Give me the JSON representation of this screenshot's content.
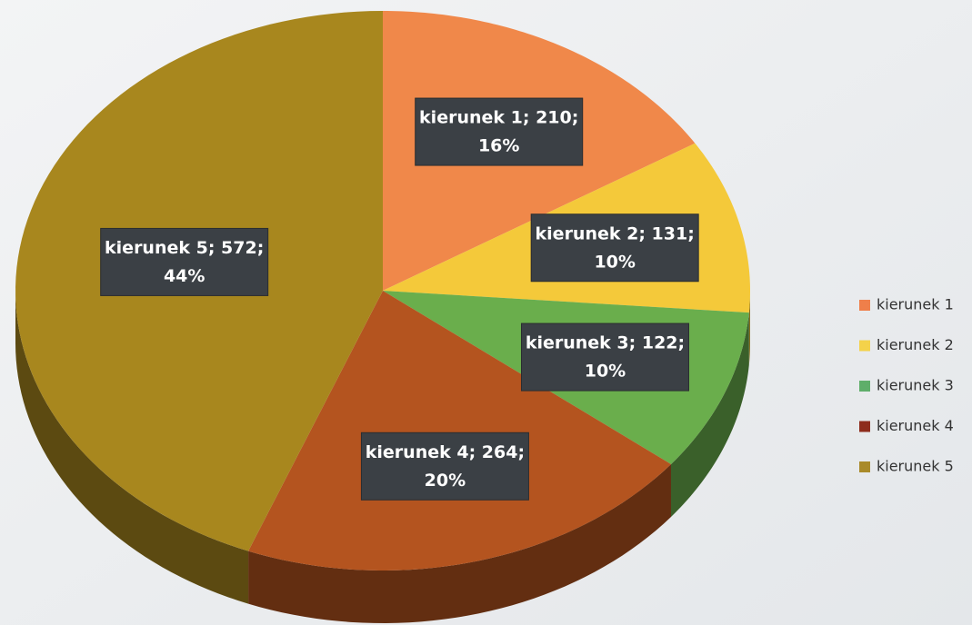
{
  "chart_data": {
    "type": "pie",
    "categories": [
      "kierunek 1",
      "kierunek 2",
      "kierunek 3",
      "kierunek 4",
      "kierunek 5"
    ],
    "values": [
      210,
      131,
      122,
      264,
      572
    ],
    "percentages": [
      16,
      10,
      10,
      20,
      44
    ],
    "value_labels": [
      [
        "kierunek 1; 210;",
        "16%"
      ],
      [
        "kierunek 2; 131;",
        "10%"
      ],
      [
        "kierunek 3; 122;",
        "10%"
      ],
      [
        "kierunek 4; 264;",
        "20%"
      ],
      [
        "kierunek 5; 572;",
        "44%"
      ]
    ],
    "colors": [
      "#f0884a",
      "#f4c93a",
      "#6aae4c",
      "#b4541f",
      "#a8871e"
    ],
    "legend_colors": [
      "#ef7f4a",
      "#f4d24a",
      "#5fae6a",
      "#8e2c1c",
      "#a98a2a"
    ],
    "legend": "right"
  }
}
